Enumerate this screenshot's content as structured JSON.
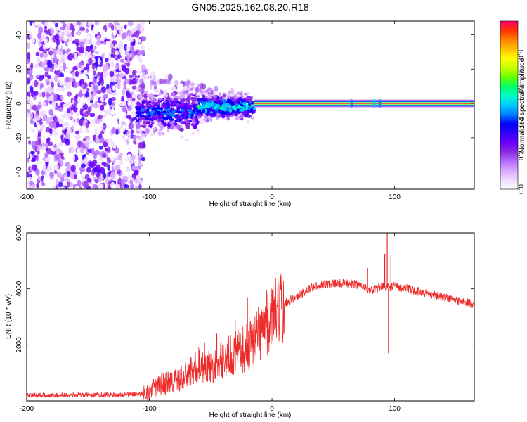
{
  "title": "GN05.2025.162.08.20.R18",
  "colors": {
    "snr_line": "#ee2b2b",
    "frame": "#000000",
    "colormap": [
      "#ffffff",
      "#f0d9ff",
      "#d9a8ff",
      "#b26bff",
      "#8a2be2",
      "#6a00ff",
      "#3300ff",
      "#0000ff",
      "#0080ff",
      "#00c8ff",
      "#00ffc8",
      "#00ff66",
      "#66ff00",
      "#c8ff00",
      "#ffff00",
      "#ffc000",
      "#ff8000",
      "#ff3300",
      "#ff0066"
    ]
  },
  "chart_data": [
    {
      "type": "heatmap",
      "title": "GN05.2025.162.08.20.R18",
      "xlabel": "Height of straight line (km)",
      "ylabel": "Frequency (Hz)",
      "xlim": [
        -200,
        165
      ],
      "ylim": [
        -50,
        48
      ],
      "xticks": [
        -200,
        -100,
        0,
        100
      ],
      "yticks": [
        -40,
        -20,
        0,
        20,
        40
      ],
      "colorbar": {
        "label": "Normalized spectral amplitude",
        "range": [
          0,
          1
        ],
        "ticks": [
          0,
          0.2,
          0.4,
          0.6,
          0.8
        ]
      },
      "regions": [
        {
          "x": [
            -200,
            -110
          ],
          "description_level": 0.2,
          "freq_spread": [
            -50,
            48
          ]
        },
        {
          "x": [
            -110,
            -60
          ],
          "freq_center": -5,
          "freq_spread": [
            -15,
            10
          ],
          "amplitude": 0.4
        },
        {
          "x": [
            -60,
            -15
          ],
          "freq_center": -2,
          "freq_spread": [
            -8,
            6
          ],
          "amplitude": 0.55
        },
        {
          "x": [
            -15,
            165
          ],
          "freq_center": 0,
          "freq_spread": [
            -2,
            2
          ],
          "amplitude": 0.95
        }
      ]
    },
    {
      "type": "line",
      "xlabel": "Height of straight line (km)",
      "ylabel": "SNR (10 * v/v)",
      "xlim": [
        -200,
        165
      ],
      "ylim": [
        0,
        6000
      ],
      "xticks": [
        -200,
        -100,
        0,
        100
      ],
      "yticks": [
        2000,
        4000,
        6000
      ],
      "series": [
        {
          "x": [
            -200,
            -180,
            -160,
            -140,
            -120,
            -105,
            -100,
            -90,
            -80,
            -70,
            -60,
            -50,
            -40,
            -30,
            -20,
            -10,
            0,
            10,
            20,
            30,
            40,
            50,
            60,
            70,
            75,
            80,
            85,
            90,
            95,
            100,
            110,
            120,
            130,
            140,
            150,
            165
          ],
          "y": [
            200,
            200,
            210,
            220,
            230,
            260,
            350,
            600,
            700,
            900,
            1300,
            1200,
            1500,
            1700,
            1900,
            2500,
            3000,
            3500,
            3700,
            4000,
            4150,
            4200,
            4200,
            4150,
            4100,
            3900,
            4000,
            4100,
            4050,
            4100,
            4000,
            3900,
            3800,
            3700,
            3600,
            3450
          ]
        }
      ],
      "spikes": [
        {
          "x": -55,
          "y": 2100
        },
        {
          "x": -45,
          "y": 2400
        },
        {
          "x": -30,
          "y": 2900
        },
        {
          "x": -20,
          "y": 3700
        },
        {
          "x": -4,
          "y": 3250
        },
        {
          "x": 78,
          "y": 4750
        },
        {
          "x": 92,
          "y": 5250
        },
        {
          "x": 94,
          "y": 6000
        },
        {
          "x": 95,
          "y": 1700
        },
        {
          "x": 97,
          "y": 5200
        }
      ]
    }
  ]
}
